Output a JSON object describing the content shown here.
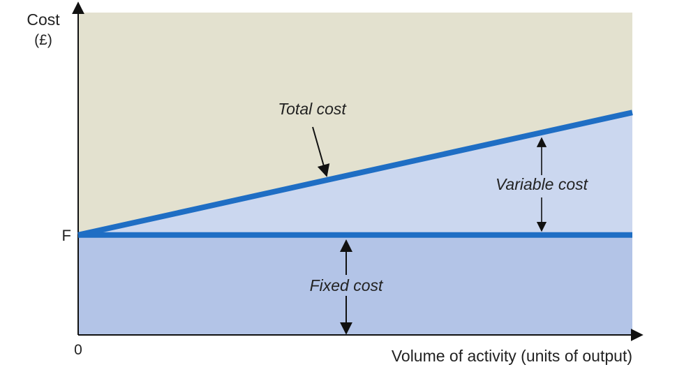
{
  "chart_data": {
    "type": "line",
    "title": "",
    "ylabel_lines": [
      "Cost",
      "(£)"
    ],
    "xlabel": "Volume of activity (units of output)",
    "origin_label": "0",
    "fixed_cost_tick_label": "F",
    "xlim": [
      0,
      100
    ],
    "ylim": [
      0,
      100
    ],
    "fixed_cost_level": 31,
    "series": [
      {
        "name": "Total cost",
        "x": [
          0,
          100
        ],
        "y": [
          31,
          69
        ]
      },
      {
        "name": "",
        "x": [
          0,
          100
        ],
        "y": [
          31,
          31
        ]
      }
    ],
    "annotations": {
      "total_cost": "Total cost",
      "variable_cost": "Variable cost",
      "fixed_cost": "Fixed cost"
    },
    "colors": {
      "line": "#1f6ec4",
      "area_above": "#e3e1cf",
      "area_variable": "#cbd7ef",
      "area_fixed": "#b3c4e7",
      "axis": "#111111"
    },
    "grid": false,
    "legend": "none"
  }
}
